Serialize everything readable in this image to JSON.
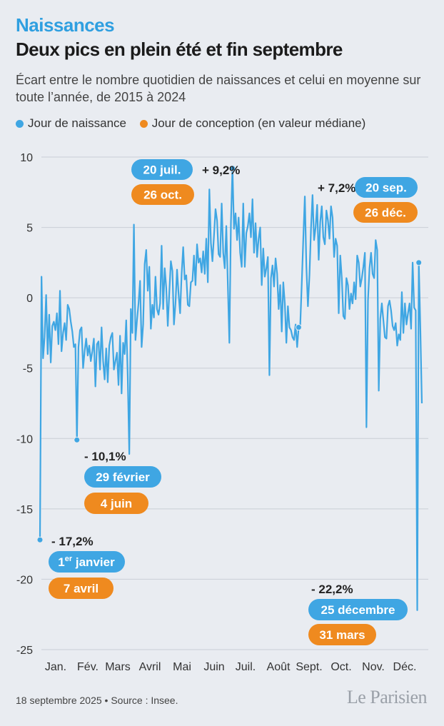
{
  "header": {
    "kicker": "Naissances",
    "title": "Deux pics en plein été et fin septembre",
    "subtitle": "Écart entre le nombre quotidien de naissances et celui en moyenne sur toute l’année, de 2015 à 2024"
  },
  "legend": {
    "birth": "Jour de naissance",
    "conception": "Jour de conception (en valeur médiane)"
  },
  "colors": {
    "birth": "#3fa6e3",
    "conception": "#ef8a1f",
    "grid": "#c9ced6",
    "background": "#e9ecf1"
  },
  "chart_data": {
    "type": "line",
    "xlabel": "",
    "ylabel": "",
    "ylim": [
      -25,
      10
    ],
    "yticks": [
      10,
      5,
      0,
      -5,
      -10,
      -15,
      -20,
      -25
    ],
    "months": [
      "Jan.",
      "Fév.",
      "Mars",
      "Avril",
      "Mai",
      "Juin",
      "Juil.",
      "Août",
      "Sept.",
      "Oct.",
      "Nov.",
      "Déc."
    ],
    "grid": true,
    "series": [
      {
        "key": "birth",
        "values": [
          -17.2,
          1.5,
          -4.3,
          -2.8,
          0.2,
          -4,
          -1.2,
          -4.6,
          -2,
          -1.7,
          -2.3,
          -1.1,
          -3.3,
          0.5,
          -3.8,
          -2.5,
          -1.8,
          -3,
          -0.5,
          -0.8,
          -1.7,
          -2.4,
          -3.5,
          -3.3,
          -10.1,
          -3.5,
          -2.3,
          -2.1,
          -5,
          -3.8,
          -2.9,
          -4.1,
          -3.4,
          -4.5,
          -3.8,
          -2.9,
          -6.3,
          -3.3,
          -3.1,
          -5.1,
          -2.1,
          -4.5,
          -5.8,
          -3.6,
          -6,
          -3.4,
          -2.8,
          -2.5,
          -5.1,
          -4.5,
          -3.9,
          -6.2,
          -2.7,
          -6.8,
          -3.2,
          -4,
          -1.6,
          -5.6,
          -11.1,
          -0.8,
          -2.5,
          5.2,
          -3,
          -1.6,
          -0.4,
          1.2,
          -3.5,
          -1.9,
          2.4,
          3.4,
          0.5,
          2.2,
          -2.2,
          -0.5,
          -1.4,
          1.5,
          -0.8,
          -1.2,
          -0.4,
          3.7,
          -0.8,
          2.1,
          0.7,
          -2,
          0.4,
          2.6,
          1.9,
          -1.9,
          -0.4,
          2,
          0.3,
          -1.1,
          1.7,
          3.6,
          1.3,
          1.6,
          -0.5,
          -0.6,
          1.1,
          1.2,
          3,
          0.9,
          3.8,
          2.5,
          2.8,
          1.8,
          3.3,
          1.7,
          4.2,
          1.1,
          7.7,
          3.9,
          2.6,
          4.4,
          6.3,
          5.5,
          3.1,
          2.9,
          6.7,
          3.2,
          2.1,
          5.1,
          0.9,
          -3.2,
          5.3,
          9.2,
          4.9,
          6,
          4.1,
          5.7,
          3.2,
          2.2,
          6.7,
          2.2,
          4.6,
          5.1,
          6,
          4.3,
          7,
          3.2,
          5.3,
          2.9,
          4.2,
          5,
          0.9,
          3.5,
          1.5,
          2.1,
          2.9,
          -5.5,
          1.4,
          2.3,
          0.8,
          2.8,
          1.7,
          -0.8,
          0.9,
          -2.4,
          1.1,
          -0.4,
          -3.2,
          -0.6,
          -2.1,
          -2.3,
          -2.8,
          -3,
          -1.9,
          -3.5,
          -2.1,
          -2,
          1,
          4.2,
          7.2,
          2.2,
          -0.6,
          1.6,
          4.9,
          7.3,
          4.1,
          5,
          6.6,
          2.7,
          5.4,
          6.5,
          4.3,
          3.8,
          6.2,
          5.5,
          4.2,
          6.5,
          5.7,
          2.9,
          4.2,
          3.7,
          -1.1,
          3,
          1.4,
          -1.3,
          -1.5,
          1.4,
          0.9,
          -0.8,
          0.3,
          -0.4,
          1.1,
          -0.1,
          3,
          2.5,
          0.8,
          1.4,
          2.2,
          3.2,
          -9.2,
          -0.2,
          2.1,
          3.2,
          1.7,
          1.4,
          4.1,
          3.4,
          -6.6,
          -1.5,
          -0.4,
          -1.6,
          -2.8,
          -2.9,
          -0.6,
          -0.2,
          -0.9,
          -2,
          -2.3,
          -1.8,
          -3.4,
          -2.6,
          -3,
          0.4,
          -2.5,
          -0.4,
          -1.9,
          -1.1,
          -0.4,
          -2.2,
          2.5,
          -0.7,
          -0.9,
          -22.2,
          2.5,
          -2.1,
          -7.5
        ]
      }
    ],
    "annotations": [
      {
        "key": "jul",
        "value_text": "+ 9,2%",
        "birth_label": "20 juil.",
        "conception_label": "26 oct."
      },
      {
        "key": "sep",
        "value_text": "+ 7,2%",
        "birth_label": "20 sep.",
        "conception_label": "26 déc."
      },
      {
        "key": "feb",
        "value_text": "- 10,1%",
        "birth_label": "29 février",
        "conception_label": "4 juin"
      },
      {
        "key": "jan",
        "value_text": "- 17,2%",
        "birth_label_sup": "er",
        "birth_label_pre": "1",
        "birth_label_post": " janvier",
        "conception_label": "7 avril"
      },
      {
        "key": "dec",
        "value_text": "- 22,2%",
        "birth_label": "25 décembre",
        "conception_label": "31 mars"
      }
    ]
  },
  "footer": {
    "source": "18 septembre 2025 • Source : Insee.",
    "brand": "Le Parisien"
  }
}
